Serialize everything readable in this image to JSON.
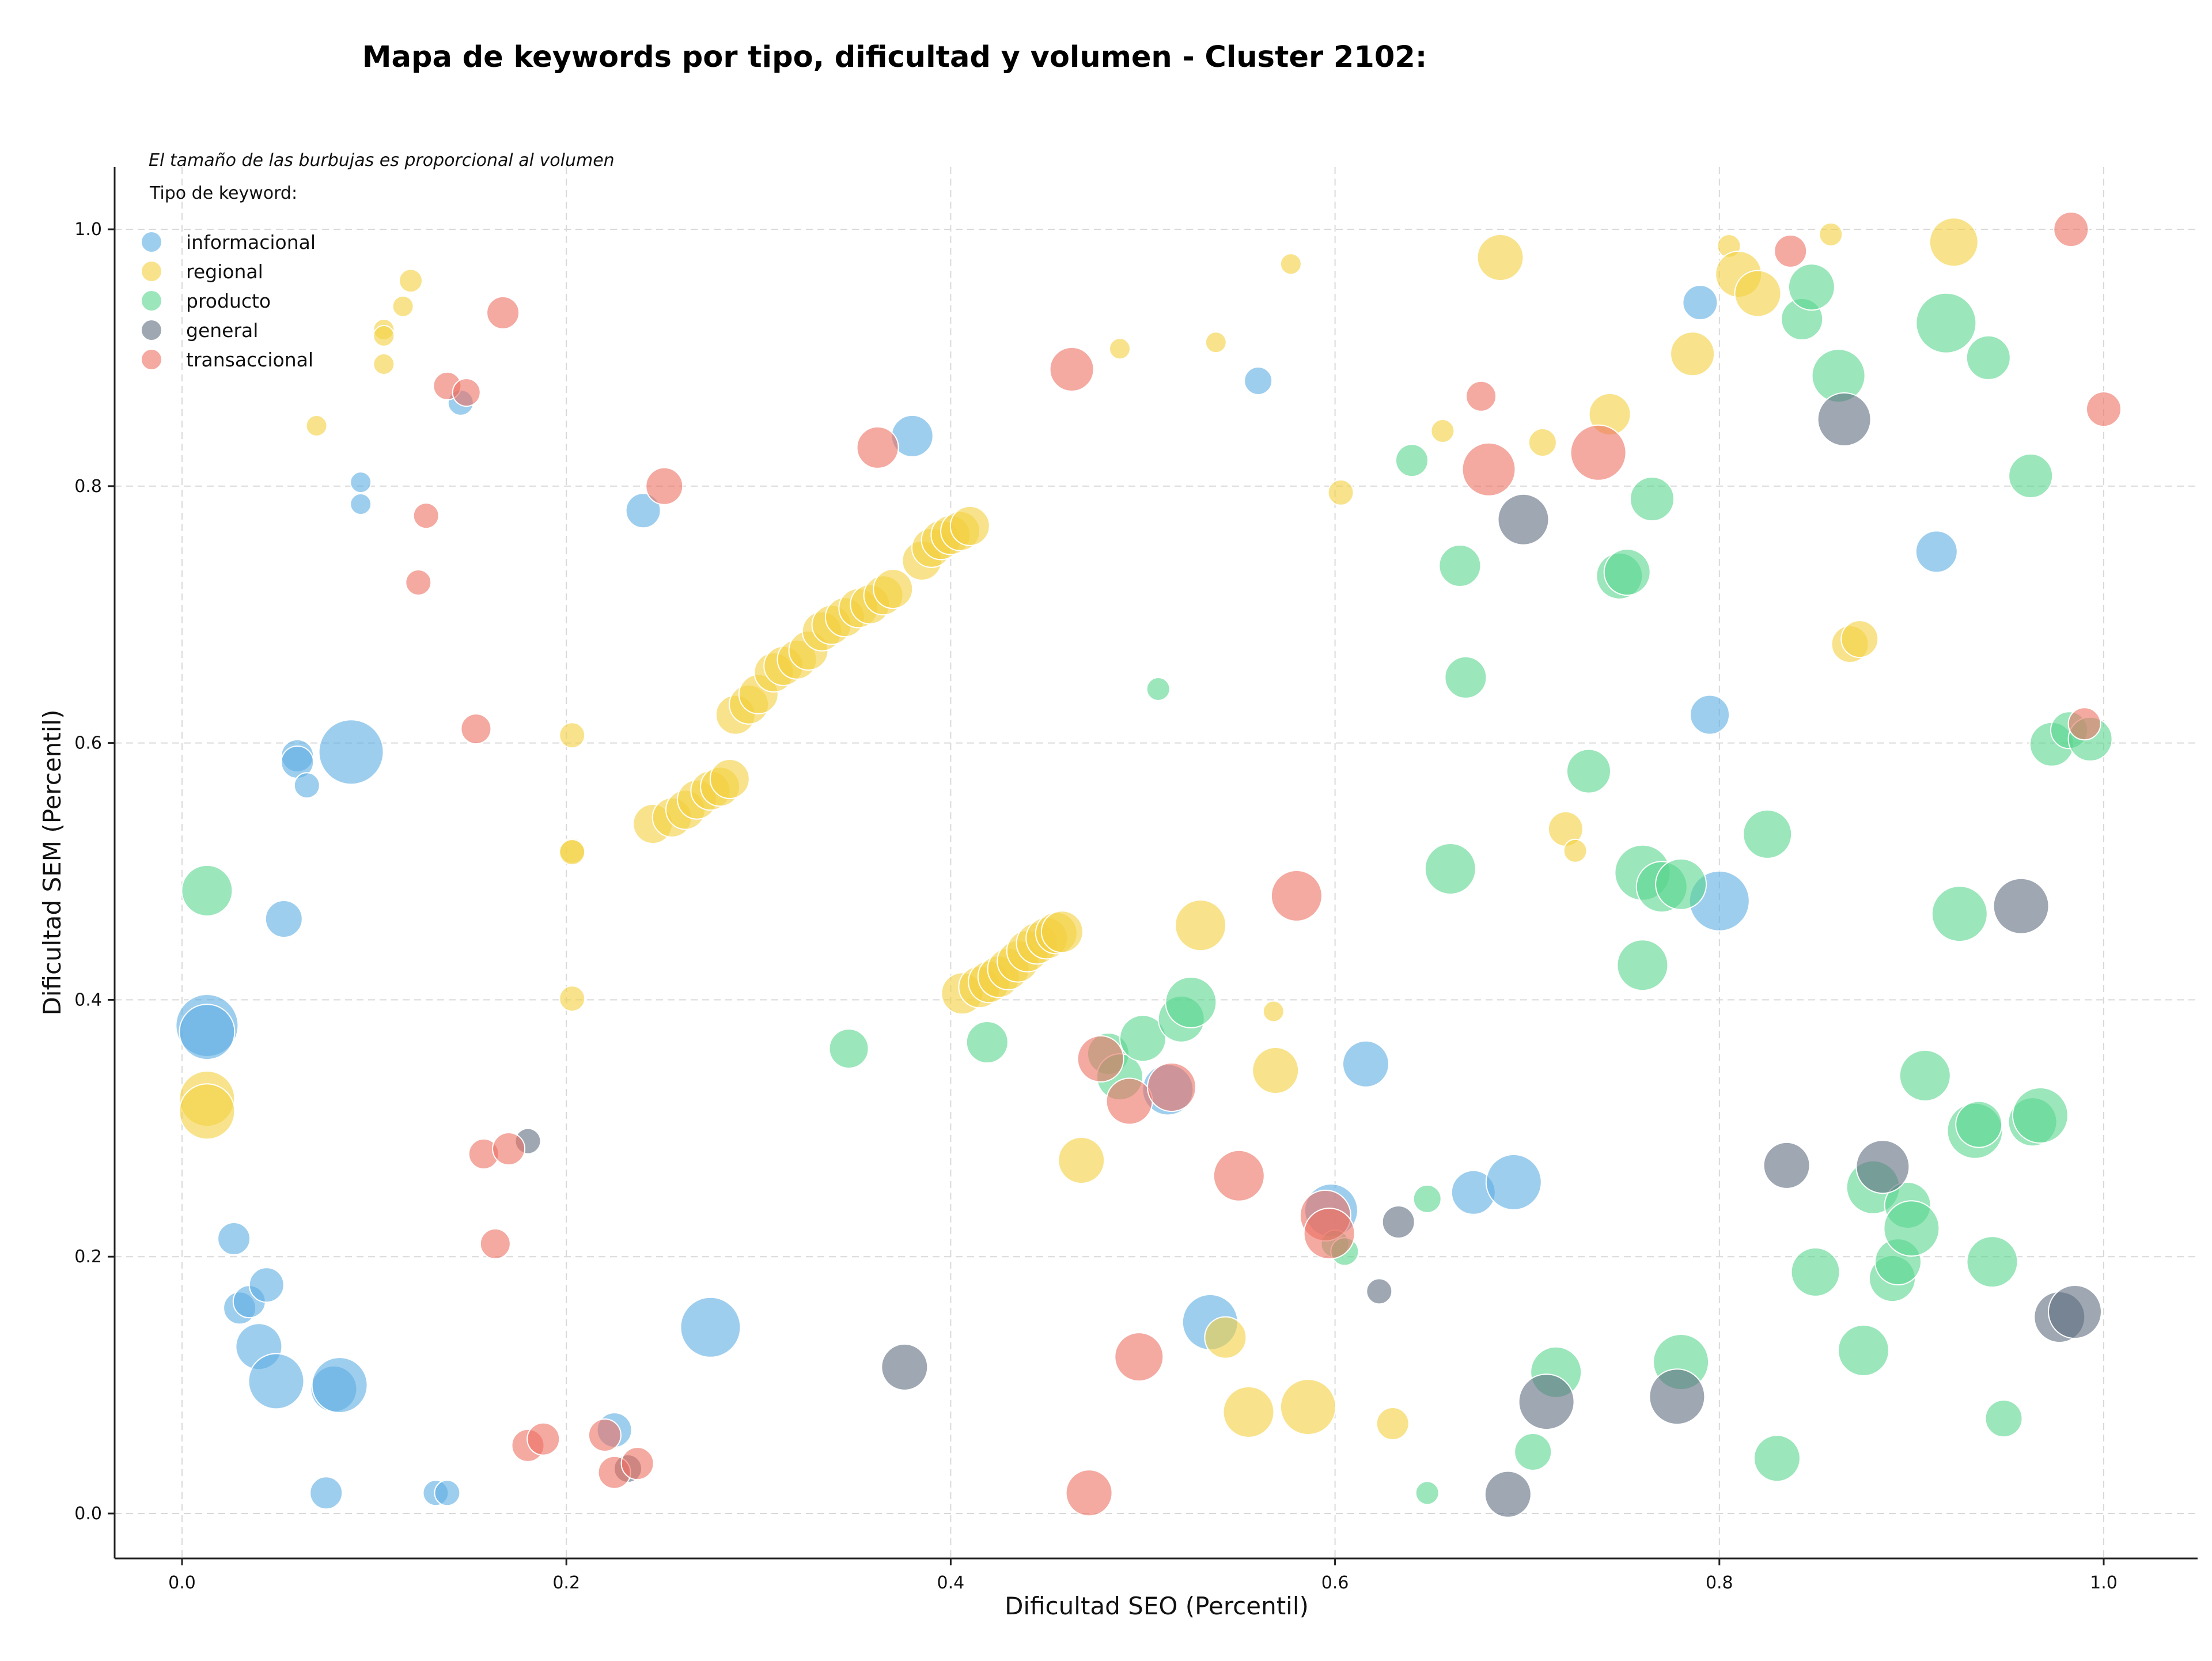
{
  "chart_data": {
    "type": "scatter",
    "title": "Mapa de keywords por tipo, dificultad y volumen - Cluster 2102:",
    "xlabel": "Dificultad SEO (Percentil)",
    "ylabel": "Dificultad SEM (Percentil)",
    "xlim": [
      -0.035,
      1.05
    ],
    "ylim": [
      -0.035,
      1.05
    ],
    "xticks": [
      "0.0",
      "0.2",
      "0.4",
      "0.6",
      "0.8",
      "1.0"
    ],
    "yticks": [
      "0.0",
      "0.2",
      "0.4",
      "0.6",
      "0.8",
      "1.0"
    ],
    "grid": true,
    "legend_placement": "top-left",
    "note": "El tamaño de las burbujas es proporcional al volumen",
    "legend_title": "Tipo de keyword:",
    "series": [
      {
        "name": "informacional",
        "color": "#5DADE2",
        "points": [
          [
            0.013,
            0.38,
            1.35
          ],
          [
            0.013,
            0.375,
            1.2
          ],
          [
            0.053,
            0.463,
            0.8
          ],
          [
            0.06,
            0.59,
            0.7
          ],
          [
            0.06,
            0.585,
            0.7
          ],
          [
            0.065,
            0.567,
            0.55
          ],
          [
            0.088,
            0.593,
            1.4
          ],
          [
            0.093,
            0.803,
            0.45
          ],
          [
            0.093,
            0.786,
            0.45
          ],
          [
            0.145,
            0.865,
            0.55
          ],
          [
            0.027,
            0.214,
            0.7
          ],
          [
            0.03,
            0.16,
            0.7
          ],
          [
            0.035,
            0.165,
            0.7
          ],
          [
            0.04,
            0.13,
            1.0
          ],
          [
            0.044,
            0.178,
            0.75
          ],
          [
            0.049,
            0.103,
            1.2
          ],
          [
            0.079,
            0.097,
            1.0
          ],
          [
            0.082,
            0.1,
            1.2
          ],
          [
            0.075,
            0.016,
            0.7
          ],
          [
            0.132,
            0.016,
            0.55
          ],
          [
            0.138,
            0.016,
            0.55
          ],
          [
            0.225,
            0.065,
            0.75
          ],
          [
            0.24,
            0.781,
            0.75
          ],
          [
            0.275,
            0.145,
            1.3
          ],
          [
            0.38,
            0.839,
            0.9
          ],
          [
            0.56,
            0.882,
            0.6
          ],
          [
            0.513,
            0.33,
            1.1
          ],
          [
            0.535,
            0.149,
            1.2
          ],
          [
            0.598,
            0.236,
            1.15
          ],
          [
            0.616,
            0.35,
            1.0
          ],
          [
            0.672,
            0.25,
            0.95
          ],
          [
            0.693,
            0.258,
            1.2
          ],
          [
            0.79,
            0.943,
            0.75
          ],
          [
            0.795,
            0.622,
            0.85
          ],
          [
            0.8,
            0.477,
            1.3
          ],
          [
            0.913,
            0.749,
            0.9
          ]
        ]
      },
      {
        "name": "regional",
        "color": "#F4D03F",
        "points": [
          [
            0.013,
            0.323,
            1.2
          ],
          [
            0.013,
            0.313,
            1.2
          ],
          [
            0.07,
            0.847,
            0.45
          ],
          [
            0.105,
            0.922,
            0.45
          ],
          [
            0.105,
            0.917,
            0.45
          ],
          [
            0.105,
            0.895,
            0.45
          ],
          [
            0.115,
            0.94,
            0.45
          ],
          [
            0.119,
            0.96,
            0.5
          ],
          [
            0.203,
            0.606,
            0.55
          ],
          [
            0.203,
            0.516,
            0.55
          ],
          [
            0.203,
            0.515,
            0.55
          ],
          [
            0.203,
            0.401,
            0.55
          ],
          [
            0.245,
            0.537,
            0.85
          ],
          [
            0.255,
            0.542,
            0.85
          ],
          [
            0.262,
            0.548,
            0.85
          ],
          [
            0.268,
            0.556,
            0.85
          ],
          [
            0.275,
            0.563,
            0.85
          ],
          [
            0.28,
            0.566,
            0.85
          ],
          [
            0.285,
            0.572,
            0.85
          ],
          [
            0.288,
            0.622,
            0.85
          ],
          [
            0.295,
            0.63,
            0.85
          ],
          [
            0.3,
            0.638,
            0.85
          ],
          [
            0.308,
            0.655,
            0.85
          ],
          [
            0.313,
            0.66,
            0.85
          ],
          [
            0.32,
            0.665,
            0.85
          ],
          [
            0.326,
            0.672,
            0.85
          ],
          [
            0.333,
            0.687,
            0.85
          ],
          [
            0.338,
            0.692,
            0.85
          ],
          [
            0.345,
            0.698,
            0.85
          ],
          [
            0.352,
            0.705,
            0.85
          ],
          [
            0.358,
            0.708,
            0.85
          ],
          [
            0.365,
            0.715,
            0.85
          ],
          [
            0.37,
            0.72,
            0.85
          ],
          [
            0.385,
            0.742,
            0.85
          ],
          [
            0.39,
            0.752,
            0.85
          ],
          [
            0.395,
            0.758,
            0.85
          ],
          [
            0.4,
            0.762,
            0.85
          ],
          [
            0.405,
            0.765,
            0.85
          ],
          [
            0.41,
            0.769,
            0.85
          ],
          [
            0.406,
            0.405,
            0.9
          ],
          [
            0.415,
            0.41,
            0.9
          ],
          [
            0.42,
            0.414,
            0.9
          ],
          [
            0.425,
            0.418,
            0.9
          ],
          [
            0.43,
            0.424,
            0.9
          ],
          [
            0.435,
            0.43,
            0.9
          ],
          [
            0.44,
            0.438,
            0.9
          ],
          [
            0.445,
            0.444,
            0.9
          ],
          [
            0.45,
            0.448,
            0.9
          ],
          [
            0.455,
            0.452,
            0.9
          ],
          [
            0.458,
            0.453,
            0.9
          ],
          [
            0.468,
            0.275,
            1.0
          ],
          [
            0.53,
            0.458,
            1.1
          ],
          [
            0.538,
            0.912,
            0.45
          ],
          [
            0.488,
            0.907,
            0.45
          ],
          [
            0.543,
            0.137,
            0.9
          ],
          [
            0.555,
            0.079,
            1.1
          ],
          [
            0.568,
            0.391,
            0.45
          ],
          [
            0.569,
            0.345,
            1.0
          ],
          [
            0.577,
            0.973,
            0.45
          ],
          [
            0.586,
            0.083,
            1.2
          ],
          [
            0.603,
            0.795,
            0.55
          ],
          [
            0.63,
            0.07,
            0.7
          ],
          [
            0.656,
            0.843,
            0.5
          ],
          [
            0.686,
            0.978,
            1.0
          ],
          [
            0.708,
            0.834,
            0.6
          ],
          [
            0.72,
            0.533,
            0.75
          ],
          [
            0.725,
            0.516,
            0.5
          ],
          [
            0.743,
            0.856,
            0.9
          ],
          [
            0.786,
            0.903,
            0.95
          ],
          [
            0.805,
            0.987,
            0.5
          ],
          [
            0.81,
            0.965,
            1.0
          ],
          [
            0.82,
            0.95,
            1.0
          ],
          [
            0.858,
            0.996,
            0.5
          ],
          [
            0.868,
            0.677,
            0.8
          ],
          [
            0.873,
            0.681,
            0.8
          ],
          [
            0.922,
            0.99,
            1.05
          ]
        ]
      },
      {
        "name": "producto",
        "color": "#58D68D",
        "points": [
          [
            0.013,
            0.485,
            1.1
          ],
          [
            0.347,
            0.362,
            0.85
          ],
          [
            0.419,
            0.367,
            0.9
          ],
          [
            0.482,
            0.358,
            0.9
          ],
          [
            0.488,
            0.34,
            1.0
          ],
          [
            0.5,
            0.37,
            1.0
          ],
          [
            0.52,
            0.385,
            1.0
          ],
          [
            0.525,
            0.398,
            1.1
          ],
          [
            0.508,
            0.642,
            0.5
          ],
          [
            0.6,
            0.21,
            0.6
          ],
          [
            0.605,
            0.204,
            0.6
          ],
          [
            0.64,
            0.82,
            0.7
          ],
          [
            0.648,
            0.016,
            0.5
          ],
          [
            0.648,
            0.245,
            0.6
          ],
          [
            0.66,
            0.502,
            1.1
          ],
          [
            0.665,
            0.738,
            0.9
          ],
          [
            0.668,
            0.651,
            0.9
          ],
          [
            0.703,
            0.048,
            0.8
          ],
          [
            0.715,
            0.11,
            1.1
          ],
          [
            0.732,
            0.578,
            0.95
          ],
          [
            0.748,
            0.73,
            1.0
          ],
          [
            0.752,
            0.733,
            1.0
          ],
          [
            0.76,
            0.499,
            1.2
          ],
          [
            0.76,
            0.427,
            1.1
          ],
          [
            0.765,
            0.79,
            0.95
          ],
          [
            0.77,
            0.488,
            1.1
          ],
          [
            0.78,
            0.49,
            1.1
          ],
          [
            0.78,
            0.118,
            1.2
          ],
          [
            0.825,
            0.529,
            1.05
          ],
          [
            0.83,
            0.043,
            1.0
          ],
          [
            0.843,
            0.93,
            0.9
          ],
          [
            0.848,
            0.955,
            1.0
          ],
          [
            0.85,
            0.188,
            1.05
          ],
          [
            0.862,
            0.886,
            1.15
          ],
          [
            0.875,
            0.127,
            1.1
          ],
          [
            0.88,
            0.254,
            1.15
          ],
          [
            0.89,
            0.183,
            1.0
          ],
          [
            0.893,
            0.196,
            1.0
          ],
          [
            0.898,
            0.24,
            1.0
          ],
          [
            0.9,
            0.222,
            1.2
          ],
          [
            0.907,
            0.341,
            1.1
          ],
          [
            0.918,
            0.927,
            1.3
          ],
          [
            0.925,
            0.467,
            1.2
          ],
          [
            0.933,
            0.298,
            1.2
          ],
          [
            0.935,
            0.303,
            1.0
          ],
          [
            0.94,
            0.9,
            0.95
          ],
          [
            0.942,
            0.196,
            1.1
          ],
          [
            0.948,
            0.074,
            0.8
          ],
          [
            0.962,
            0.808,
            0.95
          ],
          [
            0.963,
            0.305,
            1.05
          ],
          [
            0.967,
            0.31,
            1.2
          ],
          [
            0.973,
            0.599,
            0.95
          ],
          [
            0.982,
            0.61,
            0.8
          ],
          [
            0.993,
            0.603,
            0.95
          ]
        ]
      },
      {
        "name": "general",
        "color": "#5D6D7E",
        "points": [
          [
            0.18,
            0.29,
            0.55
          ],
          [
            0.232,
            0.035,
            0.6
          ],
          [
            0.376,
            0.114,
            1.0
          ],
          [
            0.623,
            0.173,
            0.55
          ],
          [
            0.633,
            0.227,
            0.7
          ],
          [
            0.69,
            0.015,
            1.0
          ],
          [
            0.698,
            0.774,
            1.1
          ],
          [
            0.71,
            0.087,
            1.2
          ],
          [
            0.778,
            0.091,
            1.2
          ],
          [
            0.835,
            0.271,
            1.0
          ],
          [
            0.865,
            0.852,
            1.15
          ],
          [
            0.885,
            0.27,
            1.15
          ],
          [
            0.957,
            0.473,
            1.2
          ],
          [
            0.977,
            0.153,
            1.1
          ],
          [
            0.985,
            0.157,
            1.15
          ]
        ]
      },
      {
        "name": "transaccional",
        "color": "#EC7063",
        "points": [
          [
            0.123,
            0.725,
            0.55
          ],
          [
            0.127,
            0.777,
            0.55
          ],
          [
            0.138,
            0.878,
            0.6
          ],
          [
            0.148,
            0.873,
            0.6
          ],
          [
            0.153,
            0.611,
            0.65
          ],
          [
            0.157,
            0.28,
            0.65
          ],
          [
            0.163,
            0.21,
            0.65
          ],
          [
            0.167,
            0.935,
            0.7
          ],
          [
            0.17,
            0.284,
            0.7
          ],
          [
            0.18,
            0.053,
            0.7
          ],
          [
            0.188,
            0.058,
            0.7
          ],
          [
            0.22,
            0.061,
            0.7
          ],
          [
            0.225,
            0.032,
            0.7
          ],
          [
            0.237,
            0.039,
            0.7
          ],
          [
            0.251,
            0.8,
            0.8
          ],
          [
            0.362,
            0.83,
            0.9
          ],
          [
            0.463,
            0.891,
            0.95
          ],
          [
            0.472,
            0.016,
            1.0
          ],
          [
            0.478,
            0.354,
            1.0
          ],
          [
            0.493,
            0.321,
            1.0
          ],
          [
            0.498,
            0.122,
            1.05
          ],
          [
            0.515,
            0.332,
            1.05
          ],
          [
            0.55,
            0.263,
            1.1
          ],
          [
            0.58,
            0.481,
            1.1
          ],
          [
            0.595,
            0.232,
            1.1
          ],
          [
            0.597,
            0.218,
            1.1
          ],
          [
            0.676,
            0.87,
            0.65
          ],
          [
            0.68,
            0.813,
            1.15
          ],
          [
            0.737,
            0.826,
            1.2
          ],
          [
            0.837,
            0.983,
            0.7
          ],
          [
            0.983,
            1.0,
            0.75
          ],
          [
            0.99,
            0.615,
            0.7
          ],
          [
            1.0,
            0.86,
            0.75
          ]
        ]
      }
    ]
  }
}
